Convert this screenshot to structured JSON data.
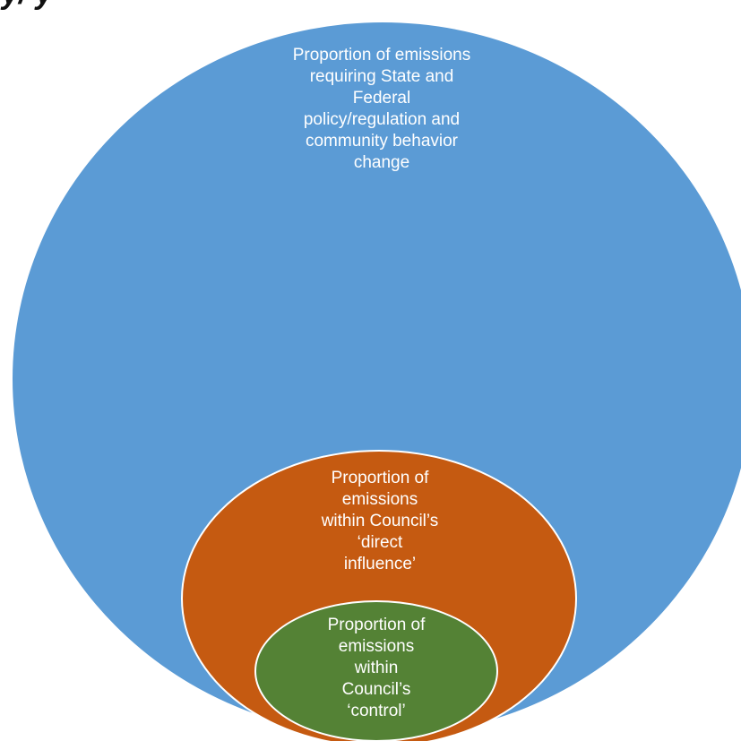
{
  "header": {
    "partial_text": "y/ y"
  },
  "diagram": {
    "outer": {
      "label": "Proportion of emissions\nrequiring State and\nFederal\npolicy/regulation and\ncommunity behavior\nchange",
      "color": "#5b9bd5"
    },
    "middle": {
      "label": "Proportion of\nemissions\nwithin Council’s\n‘direct\ninfluence’",
      "color": "#c55a11"
    },
    "inner": {
      "label": "Proportion of\nemissions\nwithin\nCouncil’s\n‘control’",
      "color": "#548235"
    }
  }
}
